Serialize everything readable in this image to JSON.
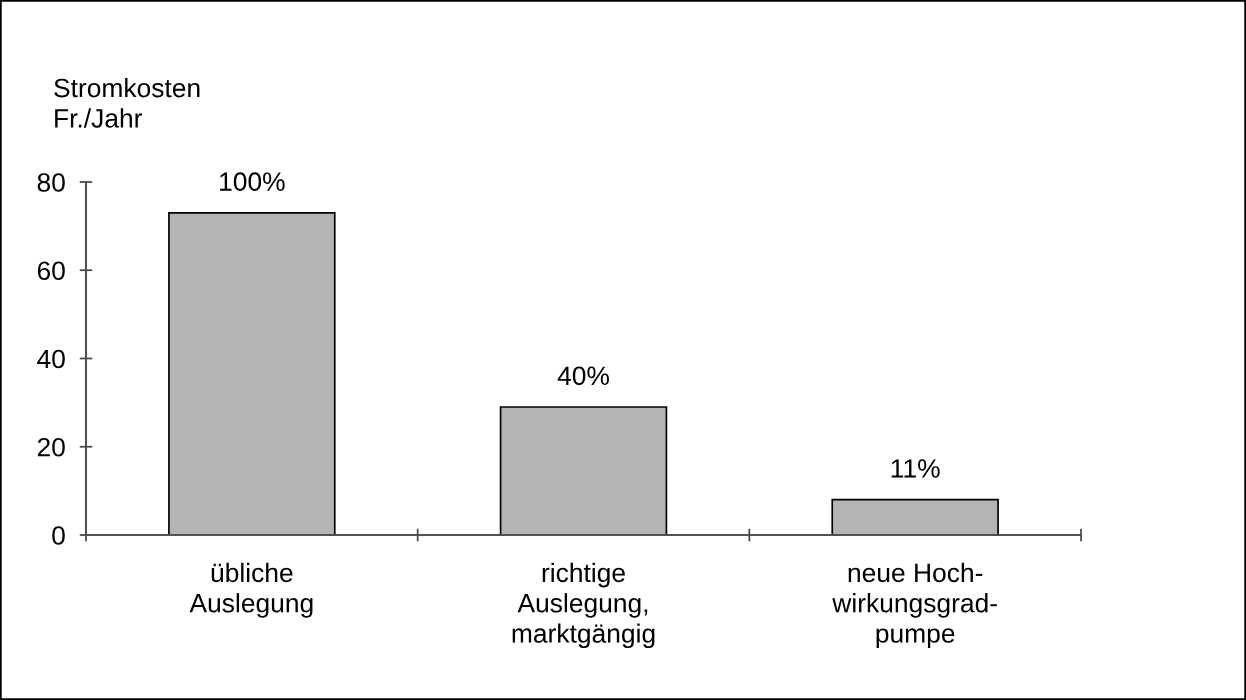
{
  "chart_data": {
    "type": "bar",
    "ylabel": "Stromkosten\nFr./Jahr",
    "categories": [
      "übliche\nAuslegung",
      "richtige\nAuslegung,\nmarktgängig",
      "neue Hoch-\nwirkungsgrad-\npumpe"
    ],
    "values": [
      73,
      29,
      8
    ],
    "color": "#b4b4b4",
    "annotations": [
      {
        "text": "100%",
        "x": "übliche\nAuslegung",
        "y": 73
      },
      {
        "text": "40%",
        "x": "richtige\nAuslegung,\nmarktgängig",
        "y": 29
      },
      {
        "text": "11%",
        "x": "neue Hoch-\nwirkungsgrad-\npumpe",
        "y": 8
      }
    ],
    "ylim": [
      0,
      80
    ],
    "yticks": [
      0,
      20,
      40,
      60,
      80
    ]
  }
}
